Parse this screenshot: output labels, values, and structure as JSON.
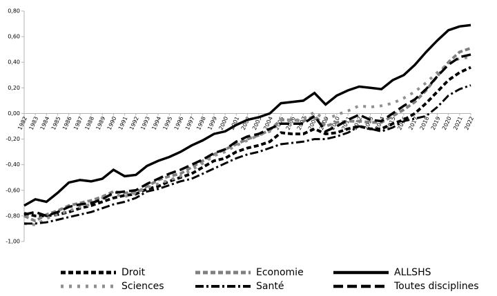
{
  "chart_data": {
    "type": "line",
    "categories": [
      "1982",
      "1983",
      "1984",
      "1985",
      "1986",
      "1987",
      "1988",
      "1989",
      "1990",
      "1991",
      "1992",
      "1993",
      "1994",
      "1995",
      "1996",
      "1997",
      "1998",
      "1999",
      "2000",
      "2001",
      "2002",
      "2003",
      "2004",
      "2005",
      "2006",
      "2007",
      "2008",
      "2009",
      "2010",
      "2011",
      "2012",
      "2013",
      "2014",
      "2015",
      "2016",
      "2017",
      "2018",
      "2019",
      "2020",
      "2021",
      "2022"
    ],
    "series": [
      {
        "name": "Droit",
        "color": "#000000",
        "style": "dashed",
        "values": [
          -0.78,
          -0.8,
          -0.8,
          -0.79,
          -0.77,
          -0.74,
          -0.72,
          -0.69,
          -0.66,
          -0.64,
          -0.63,
          -0.59,
          -0.57,
          -0.53,
          -0.5,
          -0.47,
          -0.42,
          -0.37,
          -0.35,
          -0.3,
          -0.27,
          -0.25,
          -0.22,
          -0.15,
          -0.16,
          -0.16,
          -0.12,
          -0.16,
          -0.15,
          -0.12,
          -0.1,
          -0.12,
          -0.12,
          -0.08,
          -0.05,
          0.0,
          0.08,
          0.17,
          0.26,
          0.32,
          0.36
        ]
      },
      {
        "name": "Economie",
        "color": "#808080",
        "style": "dashed",
        "values": [
          -0.8,
          -0.84,
          -0.79,
          -0.76,
          -0.72,
          -0.7,
          -0.68,
          -0.65,
          -0.61,
          -0.62,
          -0.62,
          -0.57,
          -0.52,
          -0.49,
          -0.47,
          -0.42,
          -0.37,
          -0.32,
          -0.28,
          -0.24,
          -0.2,
          -0.17,
          -0.13,
          -0.05,
          -0.05,
          -0.06,
          -0.02,
          -0.1,
          -0.07,
          -0.06,
          -0.06,
          -0.07,
          -0.07,
          -0.02,
          0.03,
          0.09,
          0.18,
          0.29,
          0.4,
          0.48,
          0.51
        ]
      },
      {
        "name": "ALLSHS",
        "color": "#000000",
        "style": "solid",
        "values": [
          -0.72,
          -0.67,
          -0.69,
          -0.62,
          -0.54,
          -0.52,
          -0.53,
          -0.51,
          -0.44,
          -0.49,
          -0.48,
          -0.41,
          -0.37,
          -0.34,
          -0.3,
          -0.25,
          -0.21,
          -0.16,
          -0.14,
          -0.09,
          -0.05,
          -0.03,
          0.0,
          0.08,
          0.09,
          0.1,
          0.16,
          0.07,
          0.14,
          0.18,
          0.21,
          0.2,
          0.19,
          0.26,
          0.3,
          0.38,
          0.48,
          0.57,
          0.65,
          0.68,
          0.69
        ]
      },
      {
        "name": "Sciences",
        "color": "#909090",
        "style": "dotted",
        "values": [
          -0.86,
          -0.87,
          -0.82,
          -0.79,
          -0.76,
          -0.73,
          -0.71,
          -0.66,
          -0.63,
          -0.65,
          -0.62,
          -0.58,
          -0.55,
          -0.52,
          -0.49,
          -0.44,
          -0.39,
          -0.33,
          -0.3,
          -0.25,
          -0.21,
          -0.17,
          -0.14,
          -0.05,
          -0.06,
          -0.04,
          0.01,
          -0.05,
          -0.01,
          0.02,
          0.06,
          0.05,
          0.06,
          0.08,
          0.12,
          0.17,
          0.24,
          0.32,
          0.39,
          0.43,
          0.44
        ]
      },
      {
        "name": "Santé",
        "color": "#000000",
        "style": "dashdot",
        "values": [
          -0.86,
          -0.86,
          -0.85,
          -0.83,
          -0.81,
          -0.79,
          -0.77,
          -0.74,
          -0.71,
          -0.69,
          -0.66,
          -0.61,
          -0.59,
          -0.56,
          -0.53,
          -0.51,
          -0.47,
          -0.43,
          -0.39,
          -0.35,
          -0.32,
          -0.3,
          -0.27,
          -0.24,
          -0.23,
          -0.22,
          -0.2,
          -0.2,
          -0.18,
          -0.15,
          -0.1,
          -0.12,
          -0.14,
          -0.11,
          -0.06,
          -0.04,
          -0.02,
          0.05,
          0.14,
          0.19,
          0.22
        ]
      },
      {
        "name": "Toutes disciplines",
        "color": "#000000",
        "style": "longdash",
        "values": [
          -0.79,
          -0.77,
          -0.8,
          -0.77,
          -0.73,
          -0.71,
          -0.7,
          -0.67,
          -0.62,
          -0.61,
          -0.6,
          -0.55,
          -0.51,
          -0.47,
          -0.44,
          -0.4,
          -0.36,
          -0.31,
          -0.28,
          -0.22,
          -0.18,
          -0.16,
          -0.12,
          -0.08,
          -0.08,
          -0.08,
          -0.02,
          -0.14,
          -0.1,
          -0.05,
          -0.01,
          -0.05,
          -0.06,
          0.0,
          0.06,
          0.11,
          0.19,
          0.29,
          0.38,
          0.44,
          0.46
        ]
      }
    ],
    "ylim": [
      -1,
      0.8
    ],
    "yticks": [
      {
        "value": -1,
        "label": "-1,00"
      },
      {
        "value": -0.8,
        "label": "-0,80"
      },
      {
        "value": -0.6,
        "label": "-0,60"
      },
      {
        "value": -0.4,
        "label": "-0,40"
      },
      {
        "value": -0.2,
        "label": "-0,20"
      },
      {
        "value": 0,
        "label": "0,00"
      },
      {
        "value": 0.2,
        "label": "0,20"
      },
      {
        "value": 0.4,
        "label": "0,40"
      },
      {
        "value": 0.6,
        "label": "0,60"
      },
      {
        "value": 0.8,
        "label": "0,80"
      }
    ],
    "grid": false,
    "legend": "bottom"
  }
}
